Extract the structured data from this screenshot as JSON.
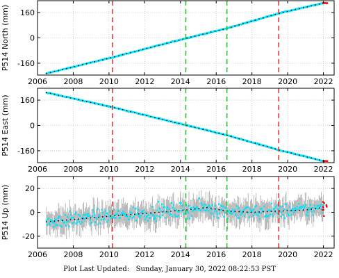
{
  "colors": {
    "data": "#00e5ff",
    "error_bars": "#a8a8a8",
    "trend": "#000000",
    "outliers": "#ff0000",
    "vline_red": "#e8262b",
    "vline_green": "#1fbf1f"
  },
  "footer": {
    "label": "Plot Last Updated:",
    "timestamp": "Sunday, January 30, 2022 08:22:53 PST"
  },
  "chart_data": [
    {
      "type": "scatter",
      "ylabel": "P514 North (mm)",
      "xlim": [
        2006,
        2022.6
      ],
      "ylim": [
        -235,
        235
      ],
      "x_ticks": [
        "2006",
        "2008",
        "2010",
        "2012",
        "2014",
        "2016",
        "2018",
        "2020",
        "2022"
      ],
      "y_ticks": [
        -160,
        0,
        160
      ],
      "series": [
        {
          "x": [
            2006.5,
            2010.2,
            2014.3,
            2016.6,
            2019.5,
            2022.0
          ],
          "y": [
            -225,
            -123,
            -3,
            60,
            155,
            220
          ]
        }
      ],
      "vlines": [
        {
          "x": 2010.2,
          "color": "red"
        },
        {
          "x": 2014.3,
          "color": "green"
        },
        {
          "x": 2016.6,
          "color": "green"
        },
        {
          "x": 2019.5,
          "color": "red"
        }
      ],
      "grid": true,
      "error_bars": false
    },
    {
      "type": "scatter",
      "ylabel": "P514 East (mm)",
      "xlim": [
        2006,
        2022.6
      ],
      "ylim": [
        -235,
        235
      ],
      "x_ticks": [
        "2006",
        "2008",
        "2010",
        "2012",
        "2014",
        "2016",
        "2018",
        "2020",
        "2022"
      ],
      "y_ticks": [
        -160,
        0,
        160
      ],
      "series": [
        {
          "x": [
            2006.5,
            2010.2,
            2014.3,
            2016.6,
            2019.5,
            2022.0
          ],
          "y": [
            208,
            115,
            2,
            -62,
            -155,
            -225
          ]
        }
      ],
      "vlines": [
        {
          "x": 2010.2,
          "color": "red"
        },
        {
          "x": 2014.3,
          "color": "green"
        },
        {
          "x": 2016.6,
          "color": "green"
        },
        {
          "x": 2019.5,
          "color": "red"
        }
      ],
      "grid": true,
      "error_bars": false
    },
    {
      "type": "scatter",
      "ylabel": "P514 Up (mm)",
      "xlim": [
        2006,
        2022.6
      ],
      "ylim": [
        -30,
        30
      ],
      "x_ticks": [
        "2006",
        "2008",
        "2010",
        "2012",
        "2014",
        "2016",
        "2018",
        "2020",
        "2022"
      ],
      "y_ticks": [
        -20,
        0,
        20
      ],
      "series": [
        {
          "x": [
            2006.5,
            2008.0,
            2010.2,
            2012.0,
            2014.3,
            2015.5,
            2016.6,
            2018.0,
            2019.5,
            2021.0,
            2022.0
          ],
          "y": [
            -8,
            -6,
            -3,
            -1,
            2,
            4,
            1,
            0,
            1,
            2,
            4
          ]
        }
      ],
      "scatter_band": 6,
      "vlines": [
        {
          "x": 2010.2,
          "color": "red"
        },
        {
          "x": 2014.3,
          "color": "green"
        },
        {
          "x": 2016.6,
          "color": "green"
        },
        {
          "x": 2019.5,
          "color": "red"
        }
      ],
      "grid": true,
      "error_bars": true
    }
  ]
}
